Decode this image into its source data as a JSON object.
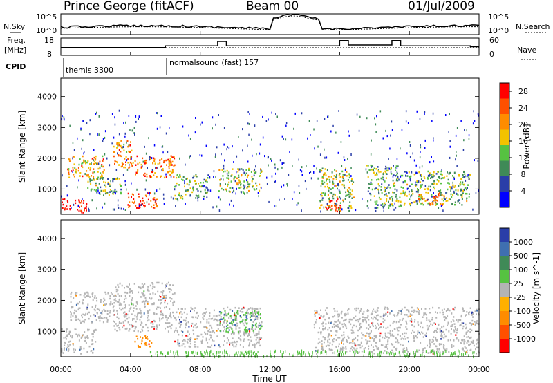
{
  "header": {
    "station": "Prince George (fitACF)",
    "beam": "Beam 00",
    "date": "01/Jul/2009"
  },
  "panels": {
    "nsky_label": "N.Sky",
    "nsky_ticks": [
      "10^5",
      "10^0"
    ],
    "nsearch_label": "N.Search",
    "nsearch_ticks": [
      "10^5",
      "10^0"
    ],
    "freq_label_1": "Freq.",
    "freq_label_2": "[MHz]",
    "freq_ticks": [
      "18",
      "8"
    ],
    "nave_label": "Nave",
    "nave_ticks": [
      "60",
      "0"
    ],
    "cpid_label": "CPID",
    "cpid_entries": [
      "themis 3300",
      "normalsound (fast) 157"
    ]
  },
  "colors": {
    "power_scale": [
      "#0000ff",
      "#2a3ea8",
      "#3f8a57",
      "#56c241",
      "#f2c200",
      "#ff8c00",
      "#ff5000",
      "#ff0000"
    ],
    "velocity_scale": [
      "#2a3ea8",
      "#3f6fb0",
      "#3f8a57",
      "#56c241",
      "#b4b4b4",
      "#ffb000",
      "#ff8c00",
      "#ff5000",
      "#ff0000"
    ]
  },
  "chart_data": [
    {
      "type": "heatmap",
      "title": "",
      "xlabel": "Time UT",
      "ylabel": "Slant Range [km]",
      "x_ticks": [
        "00:00",
        "04:00",
        "08:00",
        "12:00",
        "16:00",
        "20:00",
        "00:00"
      ],
      "xlim_hours": [
        0,
        24
      ],
      "y_ticks": [
        "1000",
        "2000",
        "3000",
        "4000"
      ],
      "ylim_km": [
        180,
        4600
      ],
      "colorbar": {
        "label": "Power [dB]",
        "ticks": [
          "4",
          "8",
          "12",
          "16",
          "20",
          "24",
          "28"
        ],
        "range": [
          0,
          30
        ]
      },
      "echo_regions": [
        {
          "t0": 0.0,
          "t1": 1.6,
          "r0": 250,
          "r1": 700,
          "level": 30
        },
        {
          "t0": 0.3,
          "t1": 2.5,
          "r0": 1400,
          "r1": 2100,
          "level": 20
        },
        {
          "t0": 1.5,
          "t1": 3.5,
          "r0": 800,
          "r1": 1400,
          "level": 12
        },
        {
          "t0": 3.0,
          "t1": 4.2,
          "r0": 1700,
          "r1": 2600,
          "level": 20
        },
        {
          "t0": 3.8,
          "t1": 5.5,
          "r0": 300,
          "r1": 900,
          "level": 26
        },
        {
          "t0": 4.2,
          "t1": 6.5,
          "r0": 1400,
          "r1": 2100,
          "level": 22
        },
        {
          "t0": 6.5,
          "t1": 8.5,
          "r0": 700,
          "r1": 1500,
          "level": 12
        },
        {
          "t0": 9.0,
          "t1": 11.5,
          "r0": 900,
          "r1": 1700,
          "level": 14
        },
        {
          "t0": 14.8,
          "t1": 16.8,
          "r0": 300,
          "r1": 1700,
          "level": 14
        },
        {
          "t0": 15.2,
          "t1": 16.2,
          "r0": 300,
          "r1": 700,
          "level": 26
        },
        {
          "t0": 17.5,
          "t1": 19.5,
          "r0": 400,
          "r1": 1800,
          "level": 12
        },
        {
          "t0": 19.5,
          "t1": 23.5,
          "r0": 500,
          "r1": 1600,
          "level": 12
        },
        {
          "t0": 20.5,
          "t1": 22.0,
          "r0": 500,
          "r1": 900,
          "level": 22
        }
      ]
    },
    {
      "type": "heatmap",
      "title": "",
      "xlabel": "Time UT",
      "ylabel": "Slant Range [km]",
      "x_ticks": [
        "00:00",
        "04:00",
        "08:00",
        "12:00",
        "16:00",
        "20:00",
        "00:00"
      ],
      "xlim_hours": [
        0,
        24
      ],
      "y_ticks": [
        "1000",
        "2000",
        "3000",
        "4000"
      ],
      "ylim_km": [
        180,
        4600
      ],
      "colorbar": {
        "label": "Velocity [m s^-1]",
        "ticks": [
          "1000",
          "500",
          "100",
          "25",
          "-25",
          "-100",
          "-500",
          "-1000"
        ]
      },
      "echo_regions": [
        {
          "t0": 0.0,
          "t1": 2.0,
          "r0": 300,
          "r1": 1100,
          "vel": 0
        },
        {
          "t0": 0.5,
          "t1": 3.0,
          "r0": 1300,
          "r1": 2300,
          "vel": 0
        },
        {
          "t0": 3.0,
          "t1": 6.5,
          "r0": 1000,
          "r1": 2600,
          "vel": 0
        },
        {
          "t0": 4.2,
          "t1": 5.2,
          "r0": 500,
          "r1": 900,
          "vel": -150
        },
        {
          "t0": 6.5,
          "t1": 11.5,
          "r0": 500,
          "r1": 1800,
          "vel": 0
        },
        {
          "t0": 9.0,
          "t1": 11.5,
          "r0": 1000,
          "r1": 1700,
          "vel": 80
        },
        {
          "t0": 14.5,
          "t1": 24.0,
          "r0": 300,
          "r1": 1800,
          "vel": 0
        }
      ]
    }
  ]
}
